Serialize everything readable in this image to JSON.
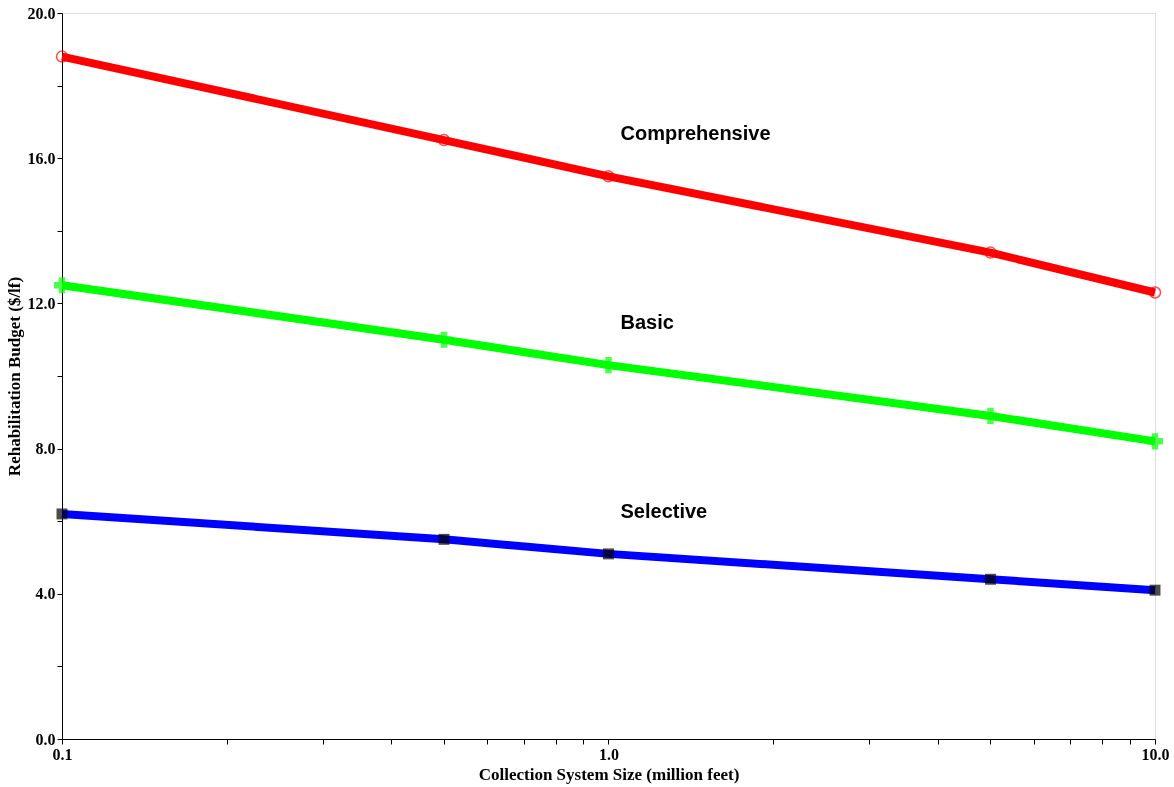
{
  "chart_data": {
    "type": "line",
    "xlabel": "Collection System Size (million feet)",
    "ylabel": "Rehabilitation Budget ($/lf)",
    "x": [
      0.1,
      0.5,
      1,
      5,
      10
    ],
    "series": [
      {
        "color": "#ff0000",
        "marker": "circle",
        "values": [
          18.8,
          16.5,
          15.5,
          13.4,
          12.3
        ]
      },
      {
        "color": "#00ff00",
        "marker": "cross",
        "values": [
          12.5,
          11.0,
          10.3,
          8.9,
          8.2
        ]
      },
      {
        "color": "#0000ff",
        "marker": "square",
        "values": [
          6.2,
          5.5,
          5.1,
          4.4,
          4.1
        ]
      }
    ],
    "log": "x",
    "grid": false,
    "xlim": [
      0.1,
      10
    ],
    "ylim": [
      0,
      20
    ],
    "xticks": [
      {
        "value": 0.1,
        "label": "0.1"
      },
      {
        "value": 0.2,
        "label": null
      },
      {
        "value": 0.3,
        "label": null
      },
      {
        "value": 0.4,
        "label": null
      },
      {
        "value": 0.5,
        "label": null
      },
      {
        "value": 0.6,
        "label": null
      },
      {
        "value": 0.7,
        "label": null
      },
      {
        "value": 0.8,
        "label": null
      },
      {
        "value": 0.9,
        "label": null
      },
      {
        "value": 1,
        "label": "1.0"
      },
      {
        "value": 2,
        "label": null
      },
      {
        "value": 3,
        "label": null
      },
      {
        "value": 4,
        "label": null
      },
      {
        "value": 5,
        "label": null
      },
      {
        "value": 6,
        "label": null
      },
      {
        "value": 7,
        "label": null
      },
      {
        "value": 8,
        "label": null
      },
      {
        "value": 9,
        "label": null
      },
      {
        "value": 10,
        "label": "10.0"
      }
    ],
    "yticks": [
      {
        "value": 0,
        "label": "0.0"
      },
      {
        "value": 2,
        "label": null
      },
      {
        "value": 4,
        "label": "4.0"
      },
      {
        "value": 6,
        "label": null
      },
      {
        "value": 8,
        "label": "8.0"
      },
      {
        "value": 10,
        "label": null
      },
      {
        "value": 12,
        "label": "12.0"
      },
      {
        "value": 14,
        "label": null
      },
      {
        "value": 16,
        "label": "16.0"
      },
      {
        "value": 18,
        "label": null
      },
      {
        "value": 20,
        "label": "20.0"
      }
    ],
    "annotations": [
      "Comprehensive",
      "Basic",
      "Selective"
    ]
  }
}
